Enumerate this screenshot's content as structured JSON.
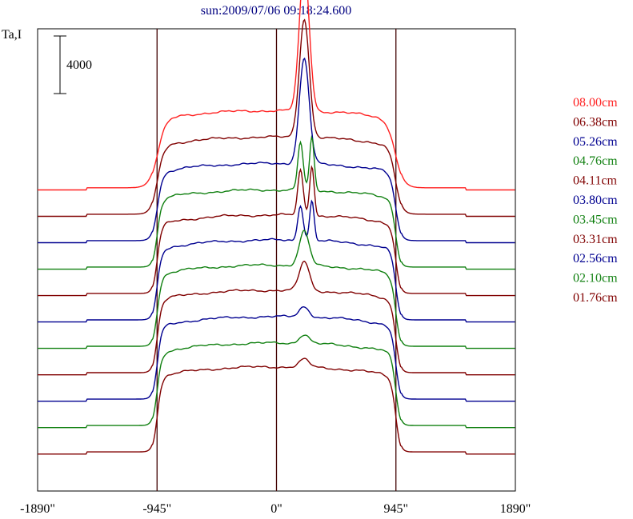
{
  "chart_data": {
    "type": "line",
    "title": "sun:2009/07/06 09:18:24.600",
    "ylabel": "Ta,I",
    "xlabel": "",
    "scale_bar_label": "4000",
    "scale_bar_value": 4000,
    "xlim": [
      -1890,
      1890
    ],
    "x_ticks": [
      {
        "value": -1890,
        "label": "-1890\""
      },
      {
        "value": -945,
        "label": "-945\""
      },
      {
        "value": 0,
        "label": "0\""
      },
      {
        "value": 945,
        "label": "945\""
      },
      {
        "value": 1890,
        "label": "1890\""
      }
    ],
    "vertical_lines": [
      -945,
      0,
      945
    ],
    "series": [
      {
        "name": "08.00cm",
        "color": "#ff2020",
        "base": 10000,
        "disk": 3200,
        "peak": 5500,
        "edge_sharp": 0.55,
        "double": false
      },
      {
        "name": "06.38cm",
        "color": "#800000",
        "base": 9000,
        "disk": 3200,
        "peak": 4500,
        "edge_sharp": 0.7,
        "double": false
      },
      {
        "name": "05.26cm",
        "color": "#000090",
        "base": 8000,
        "disk": 3200,
        "peak": 4000,
        "edge_sharp": 0.85,
        "double": false
      },
      {
        "name": "04.76cm",
        "color": "#108010",
        "base": 7000,
        "disk": 3200,
        "peak": 2000,
        "edge_sharp": 1.0,
        "double": true
      },
      {
        "name": "04.11cm",
        "color": "#800000",
        "base": 6000,
        "disk": 3250,
        "peak": 1900,
        "edge_sharp": 1.0,
        "double": true
      },
      {
        "name": "03.80cm",
        "color": "#000090",
        "base": 5000,
        "disk": 3300,
        "peak": 1500,
        "edge_sharp": 1.0,
        "double": true
      },
      {
        "name": "03.45cm",
        "color": "#108010",
        "base": 4000,
        "disk": 3350,
        "peak": 1300,
        "edge_sharp": 1.0,
        "double": false
      },
      {
        "name": "03.31cm",
        "color": "#800000",
        "base": 3000,
        "disk": 3400,
        "peak": 1100,
        "edge_sharp": 1.0,
        "double": false
      },
      {
        "name": "02.56cm",
        "color": "#000090",
        "base": 2000,
        "disk": 3400,
        "peak": 400,
        "edge_sharp": 1.0,
        "double": false
      },
      {
        "name": "02.10cm",
        "color": "#108010",
        "base": 1000,
        "disk": 3400,
        "peak": 350,
        "edge_sharp": 1.0,
        "double": false
      },
      {
        "name": "01.76cm",
        "color": "#800000",
        "base": 0,
        "disk": 3500,
        "peak": 300,
        "edge_sharp": 1.0,
        "double": false
      }
    ],
    "ylim": [
      -1000,
      16500
    ]
  }
}
